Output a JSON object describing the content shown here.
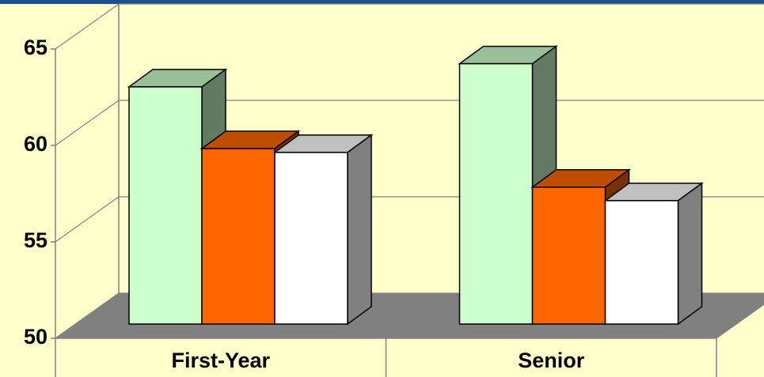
{
  "chart_data": {
    "type": "bar3d",
    "categories": [
      "First-Year",
      "Senior"
    ],
    "series": [
      {
        "color": "#ccffcc",
        "values": [
          62.3,
          63.5
        ]
      },
      {
        "color": "#ff6600",
        "values": [
          59.1,
          57.1
        ]
      },
      {
        "color": "#ffffff",
        "values": [
          58.9,
          56.4
        ]
      }
    ],
    "ylim": [
      50,
      65
    ],
    "yticks": [
      50,
      55,
      60,
      65
    ],
    "grid": true
  }
}
